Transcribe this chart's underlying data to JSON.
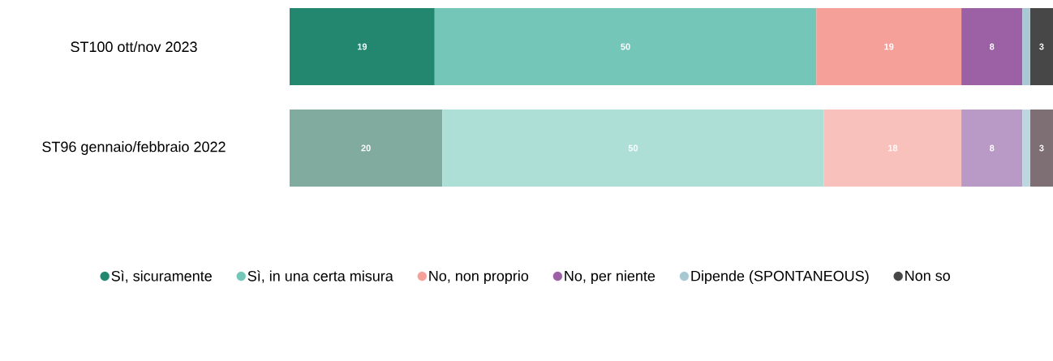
{
  "chart_data": {
    "type": "bar",
    "orientation": "horizontal",
    "stacked": true,
    "categories": [
      "ST100 ott/nov 2023",
      "ST96 gennaio/febbraio 2022"
    ],
    "xlim": [
      0,
      100
    ],
    "tick_labels": "y",
    "legend": "bottom",
    "series": [
      {
        "name": "Sì, sicuramente",
        "color": "#23876f",
        "colors": [
          "#23876f",
          "#82aba0"
        ],
        "values": [
          19,
          20
        ],
        "value_labels": [
          "19",
          "20"
        ]
      },
      {
        "name": "Sì, in una certa misura",
        "color": "#74c7b8",
        "colors": [
          "#74c7b8",
          "#aedfd7"
        ],
        "values": [
          50,
          50
        ],
        "value_labels": [
          "50",
          "50"
        ]
      },
      {
        "name": "No, non proprio",
        "color": "#f6a09a",
        "colors": [
          "#f6a09a",
          "#f8c1bb"
        ],
        "values": [
          19,
          18
        ],
        "value_labels": [
          "19",
          "18"
        ]
      },
      {
        "name": "No, per niente",
        "color": "#9b61a4",
        "colors": [
          "#9b61a4",
          "#b999c5"
        ],
        "values": [
          8,
          8
        ],
        "value_labels": [
          "8",
          "8"
        ]
      },
      {
        "name": "Dipende (SPONTANEOUS)",
        "color": "#a8c9d4",
        "colors": [
          "#a8c9d4",
          "#bcd7df"
        ],
        "values": [
          1,
          1
        ],
        "value_labels": [
          null,
          null
        ]
      },
      {
        "name": "Non so",
        "color": "#474747",
        "colors": [
          "#474747",
          "#7d6f73"
        ],
        "values": [
          3,
          3
        ],
        "value_labels": [
          "3",
          "3"
        ]
      }
    ]
  }
}
